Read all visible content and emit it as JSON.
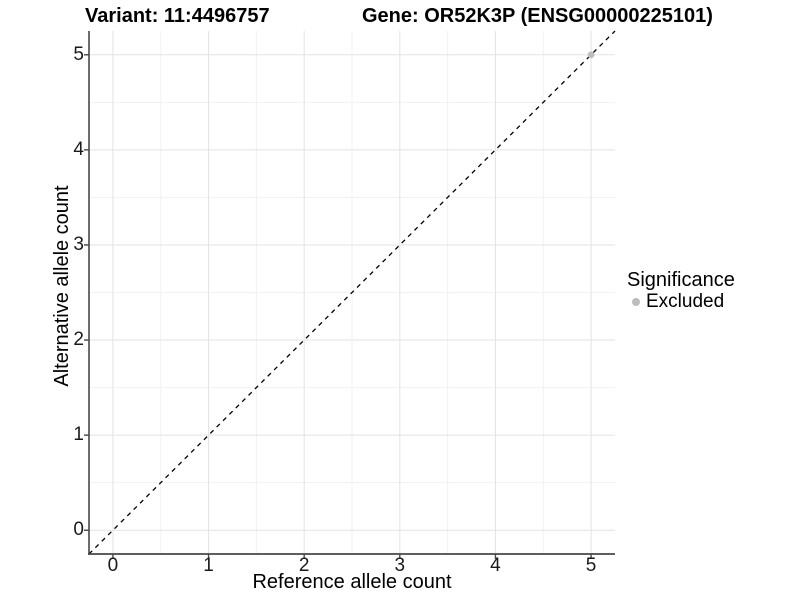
{
  "header": {
    "variant_title": "Variant: 11:4496757",
    "gene_title": "Gene: OR52K3P (ENSG00000225101)"
  },
  "chart_data": {
    "type": "scatter",
    "xlabel": "Reference allele count",
    "ylabel": "Alternative allele count",
    "xlim": [
      -0.25,
      5.25
    ],
    "ylim": [
      -0.25,
      5.25
    ],
    "x_ticks": [
      0,
      1,
      2,
      3,
      4,
      5
    ],
    "y_ticks": [
      0,
      1,
      2,
      3,
      4,
      5
    ],
    "x_minor": [
      0.5,
      1.5,
      2.5,
      3.5,
      4.5
    ],
    "y_minor": [
      0.5,
      1.5,
      2.5,
      3.5,
      4.5
    ],
    "grid": "on",
    "identity_line": {
      "style": "dashed",
      "x1": -0.25,
      "y1": -0.25,
      "x2": 5.25,
      "y2": 5.25,
      "color": "#000000"
    },
    "series": [
      {
        "name": "Excluded",
        "color": "#bdbdbd",
        "points": [
          {
            "x": 5,
            "y": 5
          }
        ]
      }
    ],
    "legend": {
      "title": "Significance",
      "position": "right",
      "items": [
        {
          "label": "Excluded",
          "color": "#bdbdbd",
          "marker": "circle"
        }
      ]
    }
  },
  "colors": {
    "background": "#ffffff",
    "grid_major": "#e3e3e3",
    "grid_minor": "#f1f1f1",
    "axis_line": "#474747",
    "tick_text": "#1a1a1a",
    "title_text": "#000000",
    "excluded_point": "#bdbdbd"
  }
}
